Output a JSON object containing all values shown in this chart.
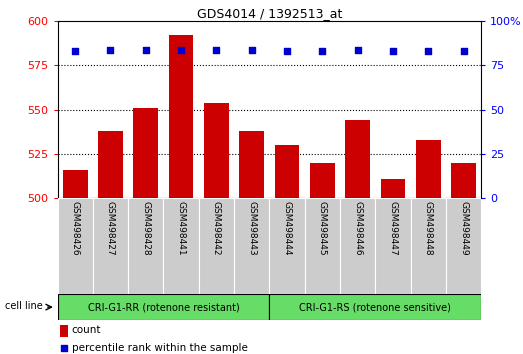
{
  "title": "GDS4014 / 1392513_at",
  "samples": [
    "GSM498426",
    "GSM498427",
    "GSM498428",
    "GSM498441",
    "GSM498442",
    "GSM498443",
    "GSM498444",
    "GSM498445",
    "GSM498446",
    "GSM498447",
    "GSM498448",
    "GSM498449"
  ],
  "counts": [
    516,
    538,
    551,
    592,
    554,
    538,
    530,
    520,
    544,
    511,
    533,
    520
  ],
  "percentile_ranks": [
    83,
    84,
    84,
    84,
    84,
    84,
    83,
    83,
    84,
    83,
    83,
    83
  ],
  "bar_color": "#cc0000",
  "dot_color": "#0000cc",
  "group1_label": "CRI-G1-RR (rotenone resistant)",
  "group2_label": "CRI-G1-RS (rotenone sensitive)",
  "group1_count": 6,
  "group2_count": 6,
  "cell_line_label": "cell line",
  "legend_count_label": "count",
  "legend_pct_label": "percentile rank within the sample",
  "ylim_left": [
    500,
    600
  ],
  "ylim_right": [
    0,
    100
  ],
  "yticks_left": [
    500,
    525,
    550,
    575,
    600
  ],
  "yticks_right": [
    0,
    25,
    50,
    75,
    100
  ],
  "grid_values": [
    525,
    550,
    575
  ],
  "bg_color_plot": "#ffffff",
  "xtick_bg_color": "#cccccc",
  "group_bg_color": "#66dd66",
  "figsize": [
    5.23,
    3.54
  ],
  "dpi": 100
}
